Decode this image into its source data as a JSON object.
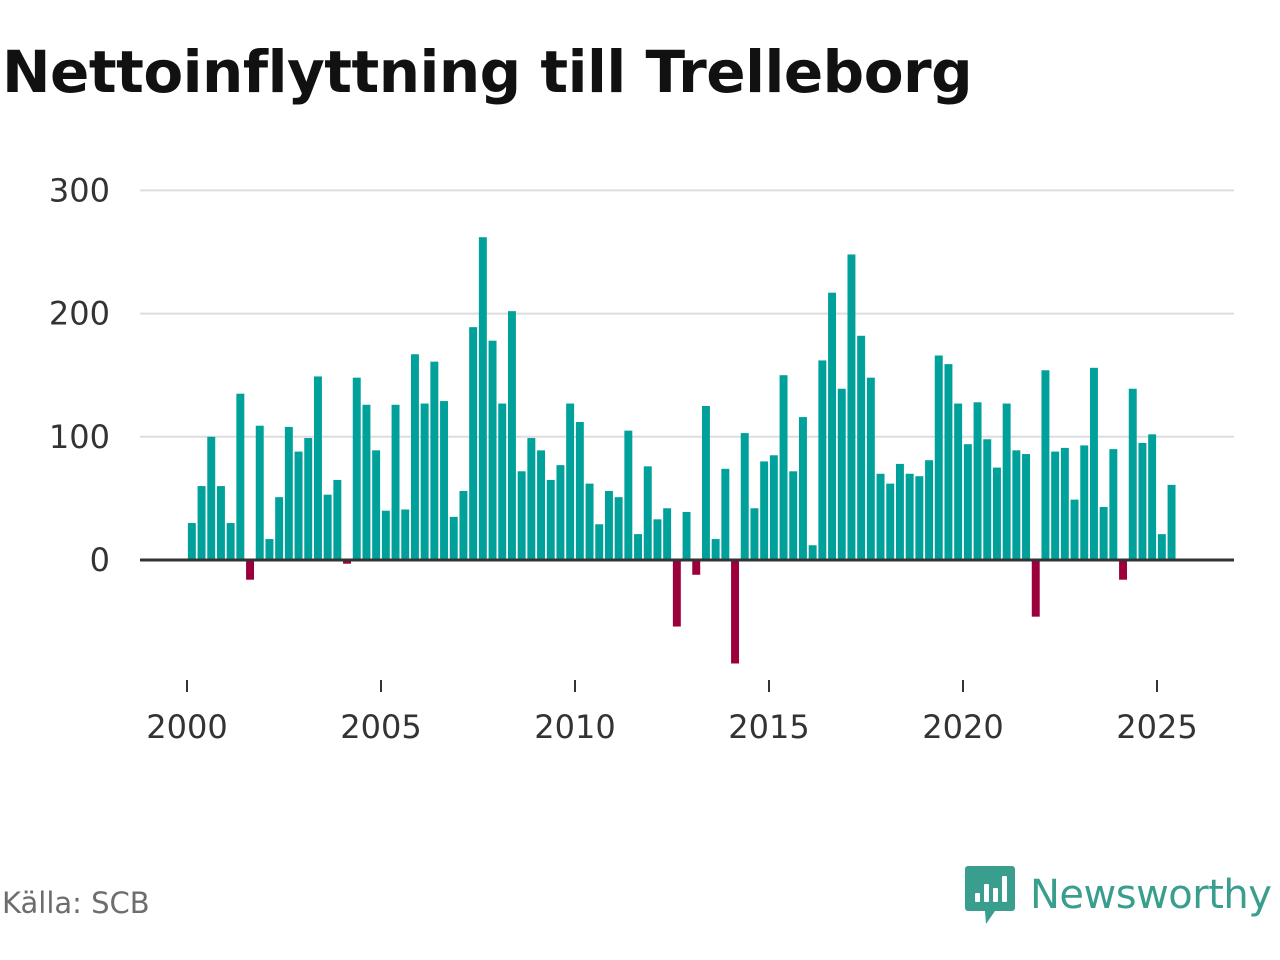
{
  "chart_data": {
    "type": "bar",
    "title": "Nettoinflyttning till Trelleborg",
    "xlabel": "",
    "ylabel": "",
    "ylim": [
      -85,
      305
    ],
    "xlim": [
      1999.8,
      2026.1
    ],
    "yticks": [
      0,
      100,
      200,
      300
    ],
    "xticks": [
      2000,
      2005,
      2010,
      2015,
      2020,
      2025
    ],
    "grid": true,
    "colors": {
      "positive": "#00a19a",
      "negative": "#9c003c",
      "grid": "#dddddd",
      "zero_line": "#333333",
      "axis_tick": "#333333"
    },
    "start_year": 2000,
    "period_months": 3,
    "values": [
      30,
      60,
      100,
      60,
      30,
      135,
      -16,
      109,
      17,
      51,
      108,
      88,
      99,
      149,
      53,
      65,
      -3,
      148,
      126,
      89,
      40,
      126,
      41,
      167,
      127,
      161,
      129,
      35,
      56,
      189,
      262,
      178,
      127,
      202,
      72,
      99,
      89,
      65,
      77,
      127,
      112,
      62,
      29,
      56,
      51,
      105,
      21,
      76,
      33,
      42,
      -54,
      39,
      -12,
      125,
      17,
      74,
      -84,
      103,
      42,
      80,
      85,
      150,
      72,
      116,
      12,
      162,
      217,
      139,
      248,
      182,
      148,
      70,
      62,
      78,
      70,
      68,
      81,
      166,
      159,
      127,
      94,
      128,
      98,
      75,
      127,
      89,
      86,
      -46,
      154,
      88,
      91,
      49,
      93,
      156,
      43,
      90,
      -16,
      139,
      95,
      102,
      21,
      61
    ]
  },
  "footer": {
    "source": "Källa: SCB",
    "brand": "Newsworthy"
  }
}
